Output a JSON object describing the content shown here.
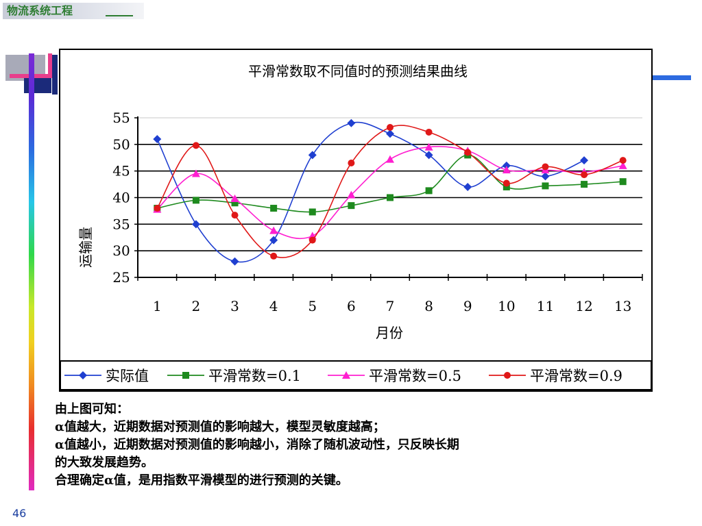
{
  "header": {
    "title": "物流系统工程"
  },
  "chart_data": {
    "type": "line",
    "title": "平滑常数取不同值时的预测结果曲线",
    "xlabel": "月份",
    "ylabel": "运输量",
    "categories": [
      "1",
      "2",
      "3",
      "4",
      "5",
      "6",
      "7",
      "8",
      "9",
      "10",
      "11",
      "12",
      "13"
    ],
    "ylim": [
      25,
      55
    ],
    "yticks": [
      "25",
      "30",
      "35",
      "40",
      "45",
      "50",
      "55"
    ],
    "grid": true,
    "legend_position": "bottom",
    "series": [
      {
        "name": "实际值",
        "color": "#1f3fd0",
        "marker": "diamond",
        "values": [
          51,
          35,
          28,
          32,
          48,
          54,
          52,
          48,
          42,
          46,
          44,
          47,
          null
        ]
      },
      {
        "name": "平滑常数=0.1",
        "color": "#1e8a1e",
        "marker": "square",
        "values": [
          38,
          39.5,
          39,
          38,
          37.3,
          38.5,
          40,
          41.3,
          48,
          42,
          42.2,
          42.5,
          43
        ]
      },
      {
        "name": "平滑常数=0.5",
        "color": "#ff1fd0",
        "marker": "triangle",
        "values": [
          37.8,
          44.5,
          39.8,
          33.8,
          32.8,
          40.5,
          47.2,
          49.5,
          48.8,
          45.2,
          45.2,
          44.8,
          46
        ]
      },
      {
        "name": "平滑常数=0.9",
        "color": "#e01818",
        "marker": "circle",
        "values": [
          38,
          49.8,
          36.7,
          29,
          32,
          46.5,
          53.2,
          52.3,
          48.5,
          42.7,
          45.8,
          44.3,
          47
        ]
      }
    ]
  },
  "notes": [
    "由上图可知：",
    "α值越大，近期数据对预测值的影响越大，模型灵敏度越高；",
    "α值越小，近期数据对预测值的影响越小，消除了随机波动性，只反映长期",
    "的大致发展趋势。",
    "合理确定α值，是用指数平滑模型的进行预测的关键。"
  ],
  "page_number": "46"
}
